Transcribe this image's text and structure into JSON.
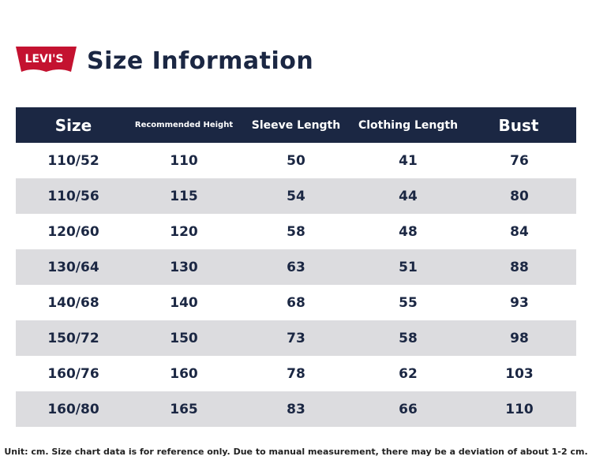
{
  "brand": {
    "logo_text": "Levi's",
    "color": "#c41230"
  },
  "title": "Size Information",
  "table": {
    "headers": [
      "Size",
      "Recommended Height",
      "Sleeve Length",
      "Clothing Length",
      "Bust"
    ],
    "rows": [
      [
        "110/52",
        "110",
        "50",
        "41",
        "76"
      ],
      [
        "110/56",
        "115",
        "54",
        "44",
        "80"
      ],
      [
        "120/60",
        "120",
        "58",
        "48",
        "84"
      ],
      [
        "130/64",
        "130",
        "63",
        "51",
        "88"
      ],
      [
        "140/68",
        "140",
        "68",
        "55",
        "93"
      ],
      [
        "150/72",
        "150",
        "73",
        "58",
        "98"
      ],
      [
        "160/76",
        "160",
        "78",
        "62",
        "103"
      ],
      [
        "160/80",
        "165",
        "83",
        "66",
        "110"
      ]
    ]
  },
  "note": "Unit: cm. Size chart data is for reference only. Due to manual measurement, there may be a deviation of about 1-2 cm.",
  "colors": {
    "header_bg": "#1b2743",
    "alt_row": "#dcdcdf"
  }
}
